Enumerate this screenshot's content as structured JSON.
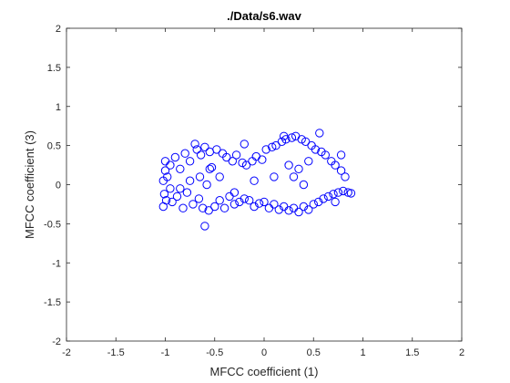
{
  "chart_data": {
    "type": "scatter",
    "title": "./Data/s6.wav",
    "xlabel": "MFCC coefficient (1)",
    "ylabel": "MFCC coefficient (3)",
    "xlim": [
      -2,
      2
    ],
    "ylim": [
      -2,
      2
    ],
    "xticks": [
      -2,
      -1.5,
      -1,
      -0.5,
      0,
      0.5,
      1,
      1.5,
      2
    ],
    "yticks": [
      -2,
      -1.5,
      -1,
      -0.5,
      0,
      0.5,
      1,
      1.5,
      2
    ],
    "xtick_labels": [
      "-2",
      "-1.5",
      "-1",
      "-0.5",
      "0",
      "0.5",
      "1",
      "1.5",
      "2"
    ],
    "ytick_labels": [
      "-2",
      "-1.5",
      "-1",
      "-0.5",
      "0",
      "0.5",
      "1",
      "1.5",
      "2"
    ],
    "grid": false,
    "marker": "circle",
    "marker_color": "#0000ff",
    "series": [
      {
        "points": [
          [
            -1.02,
            0.05
          ],
          [
            -1.01,
            -0.12
          ],
          [
            -1.0,
            0.18
          ],
          [
            -1.02,
            -0.28
          ],
          [
            -1.0,
            0.3
          ],
          [
            -0.99,
            -0.2
          ],
          [
            -0.98,
            0.1
          ],
          [
            -0.95,
            0.25
          ],
          [
            -0.93,
            -0.22
          ],
          [
            -0.9,
            0.35
          ],
          [
            -0.88,
            -0.15
          ],
          [
            -0.85,
            0.2
          ],
          [
            -0.82,
            -0.3
          ],
          [
            -0.8,
            0.4
          ],
          [
            -0.78,
            -0.1
          ],
          [
            -0.75,
            0.3
          ],
          [
            -0.72,
            -0.25
          ],
          [
            -0.7,
            0.52
          ],
          [
            -0.68,
            0.45
          ],
          [
            -0.66,
            -0.18
          ],
          [
            -0.64,
            0.38
          ],
          [
            -0.62,
            -0.3
          ],
          [
            -0.6,
            0.48
          ],
          [
            -0.58,
            0.0
          ],
          [
            -0.56,
            -0.33
          ],
          [
            -0.55,
            0.42
          ],
          [
            -0.53,
            0.22
          ],
          [
            -0.5,
            -0.28
          ],
          [
            -0.48,
            0.45
          ],
          [
            -0.45,
            -0.2
          ],
          [
            -0.42,
            0.4
          ],
          [
            -0.4,
            -0.3
          ],
          [
            -0.38,
            0.35
          ],
          [
            -0.35,
            -0.15
          ],
          [
            -0.32,
            0.3
          ],
          [
            -0.3,
            -0.25
          ],
          [
            -0.28,
            0.38
          ],
          [
            -0.25,
            -0.22
          ],
          [
            -0.22,
            0.28
          ],
          [
            -0.2,
            -0.18
          ],
          [
            -0.2,
            0.52
          ],
          [
            -0.18,
            0.25
          ],
          [
            -0.15,
            -0.2
          ],
          [
            -0.12,
            0.3
          ],
          [
            -0.1,
            -0.28
          ],
          [
            -0.08,
            0.36
          ],
          [
            -0.05,
            -0.24
          ],
          [
            -0.02,
            0.32
          ],
          [
            0.0,
            -0.22
          ],
          [
            0.02,
            0.45
          ],
          [
            0.05,
            -0.3
          ],
          [
            0.08,
            0.48
          ],
          [
            0.1,
            -0.25
          ],
          [
            0.12,
            0.5
          ],
          [
            0.15,
            -0.32
          ],
          [
            0.18,
            0.55
          ],
          [
            0.2,
            -0.28
          ],
          [
            0.22,
            0.58
          ],
          [
            0.25,
            -0.33
          ],
          [
            0.28,
            0.6
          ],
          [
            0.3,
            -0.3
          ],
          [
            0.32,
            0.62
          ],
          [
            0.35,
            -0.35
          ],
          [
            0.38,
            0.58
          ],
          [
            0.4,
            -0.28
          ],
          [
            0.42,
            0.55
          ],
          [
            0.45,
            -0.32
          ],
          [
            0.48,
            0.5
          ],
          [
            0.5,
            -0.25
          ],
          [
            0.52,
            0.45
          ],
          [
            0.55,
            -0.22
          ],
          [
            0.58,
            0.42
          ],
          [
            0.6,
            -0.18
          ],
          [
            0.62,
            0.38
          ],
          [
            0.65,
            -0.15
          ],
          [
            0.68,
            0.3
          ],
          [
            0.7,
            -0.12
          ],
          [
            0.72,
            0.25
          ],
          [
            0.75,
            -0.1
          ],
          [
            0.78,
            0.18
          ],
          [
            0.8,
            -0.08
          ],
          [
            0.82,
            0.1
          ],
          [
            0.85,
            -0.1
          ],
          [
            0.88,
            -0.11
          ],
          [
            0.78,
            0.38
          ],
          [
            0.72,
            -0.22
          ],
          [
            0.56,
            0.66
          ],
          [
            0.2,
            0.62
          ],
          [
            -0.6,
            -0.53
          ],
          [
            -0.3,
            -0.1
          ],
          [
            -0.65,
            0.1
          ],
          [
            -0.75,
            0.05
          ],
          [
            -0.45,
            0.1
          ],
          [
            0.3,
            0.1
          ],
          [
            0.35,
            0.2
          ],
          [
            0.4,
            0.0
          ],
          [
            0.25,
            0.25
          ],
          [
            -0.55,
            0.2
          ],
          [
            0.1,
            0.1
          ],
          [
            -0.1,
            0.05
          ],
          [
            0.45,
            0.3
          ],
          [
            -0.85,
            -0.05
          ],
          [
            -0.95,
            -0.05
          ]
        ]
      }
    ]
  }
}
